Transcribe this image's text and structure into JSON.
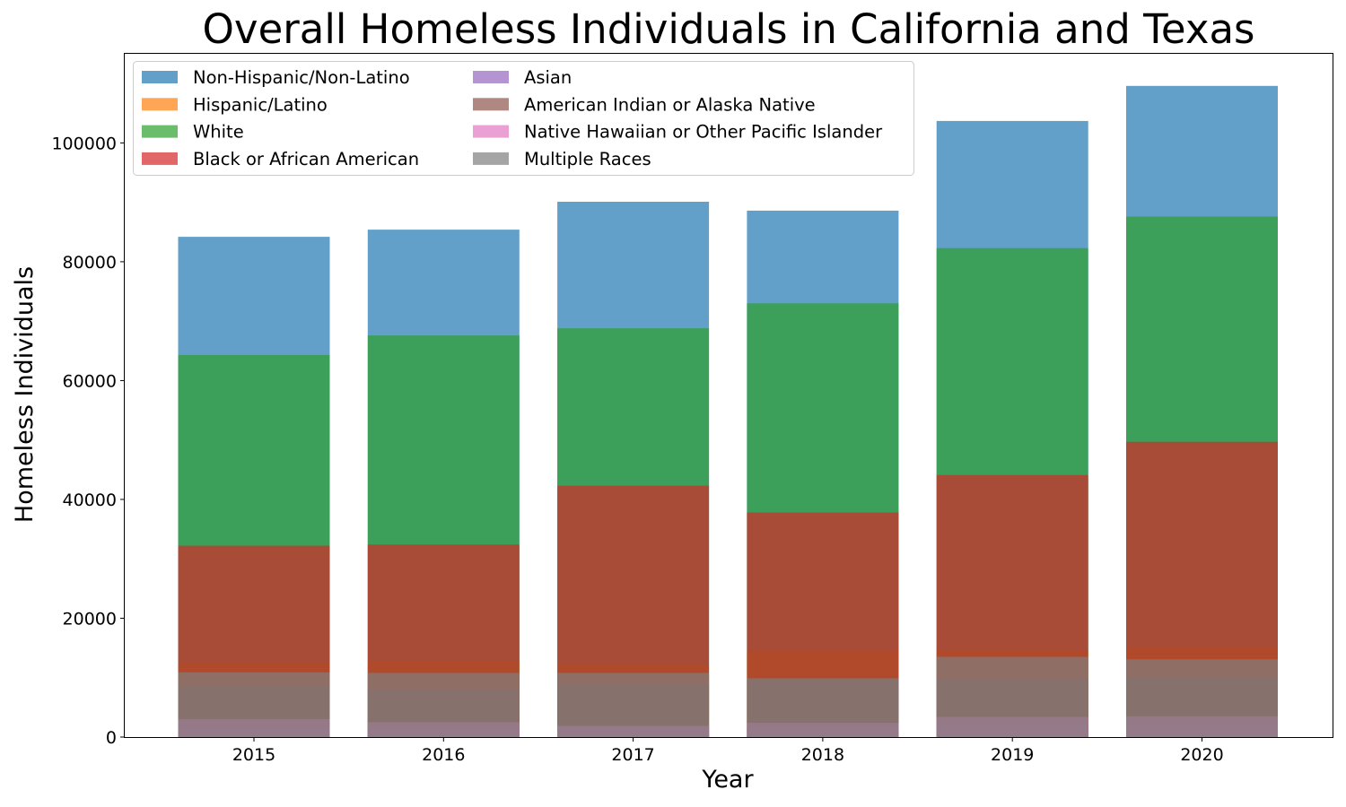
{
  "chart_data": {
    "type": "bar",
    "title": "Overall Homeless Individuals in California and Texas",
    "xlabel": "Year",
    "ylabel": "Homeless Individuals",
    "categories": [
      "2015",
      "2016",
      "2017",
      "2018",
      "2019",
      "2020"
    ],
    "ylim": [
      0,
      115000
    ],
    "yticks": [
      0,
      20000,
      40000,
      60000,
      80000,
      100000
    ],
    "ytick_labels": [
      "0",
      "20000",
      "40000",
      "60000",
      "80000",
      "100000"
    ],
    "grid": false,
    "legend_position": "top-left",
    "overlaid": true,
    "series": [
      {
        "name": "Non-Hispanic/Non-Latino",
        "color": "#1f77b4",
        "values": [
          84200,
          85400,
          90100,
          88600,
          103700,
          109600
        ]
      },
      {
        "name": "Hispanic/Latino",
        "color": "#ff7f0e",
        "values": [
          12400,
          12700,
          12200,
          14500,
          14500,
          15200
        ]
      },
      {
        "name": "White",
        "color": "#2ca02c",
        "values": [
          64300,
          67600,
          68800,
          73000,
          82300,
          87600
        ]
      },
      {
        "name": "Black or African American",
        "color": "#d62728",
        "values": [
          32200,
          32400,
          42300,
          37800,
          44100,
          49700
        ]
      },
      {
        "name": "Asian",
        "color": "#9467bd",
        "values": [
          1200,
          1300,
          1700,
          1700,
          2300,
          1900
        ]
      },
      {
        "name": "American Indian or Alaska Native",
        "color": "#8c564b",
        "values": [
          8500,
          8000,
          8800,
          9800,
          9800,
          10000
        ]
      },
      {
        "name": "Native Hawaiian or Other Pacific Islander",
        "color": "#e377c2",
        "values": [
          3000,
          2500,
          1900,
          2400,
          3400,
          3500
        ]
      },
      {
        "name": "Multiple Races",
        "color": "#7f7f7f",
        "values": [
          10900,
          10800,
          10800,
          9900,
          13500,
          13100
        ]
      }
    ]
  }
}
